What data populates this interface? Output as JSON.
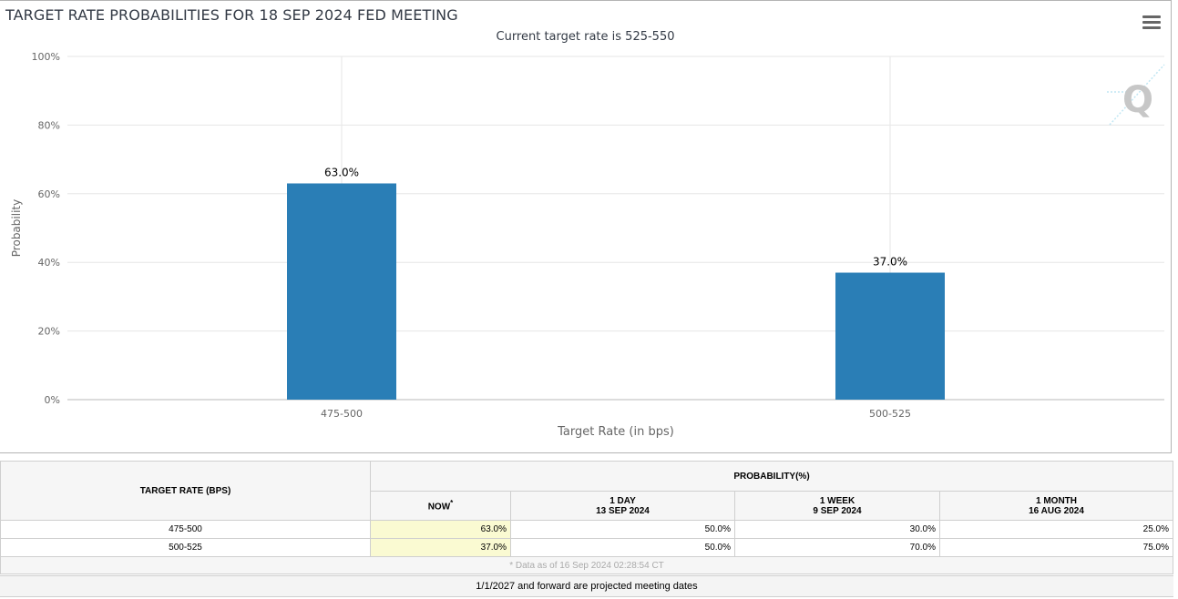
{
  "chart_data": {
    "type": "bar",
    "title": "TARGET RATE PROBABILITIES FOR 18 SEP 2024 FED MEETING",
    "subtitle": "Current target rate is 525-550",
    "categories": [
      "475-500",
      "500-525"
    ],
    "values": [
      63.0,
      37.0
    ],
    "data_labels": [
      "63.0%",
      "37.0%"
    ],
    "xlabel": "Target Rate (in bps)",
    "ylabel": "Probability",
    "ylim": [
      0,
      100
    ],
    "yticks": [
      "0%",
      "20%",
      "40%",
      "60%",
      "80%",
      "100%"
    ],
    "bar_color": "#2a7eb6",
    "grid": true
  },
  "menu": {
    "icon": "hamburger-menu-icon"
  },
  "watermark": {
    "icon": "q-logo-icon",
    "text": "Q"
  },
  "table": {
    "target_rate_header": "TARGET RATE (BPS)",
    "probability_header": "PROBABILITY(%)",
    "columns": [
      {
        "label": "NOW",
        "sub": "",
        "mark": "*"
      },
      {
        "label": "1 DAY",
        "sub": "13 SEP 2024",
        "mark": ""
      },
      {
        "label": "1 WEEK",
        "sub": "9 SEP 2024",
        "mark": ""
      },
      {
        "label": "1 MONTH",
        "sub": "16 AUG 2024",
        "mark": ""
      }
    ],
    "rows": [
      {
        "rate": "475-500",
        "values": [
          "63.0%",
          "50.0%",
          "30.0%",
          "25.0%"
        ]
      },
      {
        "rate": "500-525",
        "values": [
          "37.0%",
          "50.0%",
          "70.0%",
          "75.0%"
        ]
      }
    ],
    "note": "* Data as of 16 Sep 2024 02:28:54 CT"
  },
  "footnote": "1/1/2027 and forward are projected meeting dates"
}
